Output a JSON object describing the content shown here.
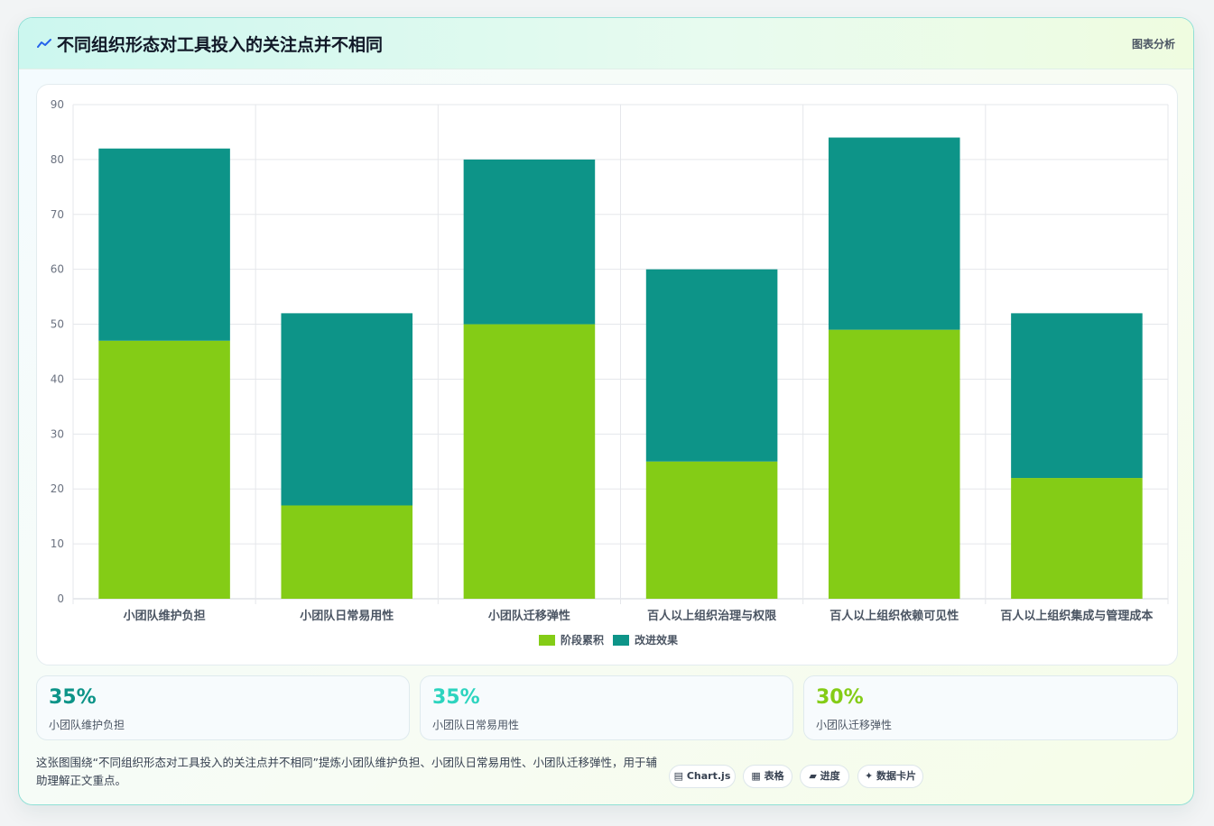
{
  "header": {
    "icon": "line-chart-icon",
    "title": "不同组织形态对工具投入的关注点并不相同",
    "tag": "图表分析"
  },
  "colors": {
    "series1": "#84cc16",
    "series2": "#0d9488",
    "stat1": "#0d9488",
    "stat2": "#2dd4bf",
    "stat3": "#84cc16"
  },
  "chart_data": {
    "type": "bar",
    "stacked": true,
    "categories": [
      "小团队维护负担",
      "小团队日常易用性",
      "小团队迁移弹性",
      "百人以上组织治理与权限",
      "百人以上组织依赖可见性",
      "百人以上组织集成与管理成本"
    ],
    "series": [
      {
        "name": "阶段累积",
        "values": [
          47,
          17,
          50,
          25,
          49,
          22
        ]
      },
      {
        "name": "改进效果",
        "values": [
          35,
          35,
          30,
          35,
          35,
          30
        ]
      }
    ],
    "ylim": [
      0,
      90
    ],
    "yticks": [
      0,
      10,
      20,
      30,
      40,
      50,
      60,
      70,
      80,
      90
    ],
    "grid": true,
    "legend": "bottom"
  },
  "stats": [
    {
      "value": "35%",
      "label": "小团队维护负担"
    },
    {
      "value": "35%",
      "label": "小团队日常易用性"
    },
    {
      "value": "30%",
      "label": "小团队迁移弹性"
    }
  ],
  "description": "这张图围绕“不同组织形态对工具投入的关注点并不相同”提炼小团队维护负担、小团队日常易用性、小团队迁移弹性，用于辅助理解正文重点。",
  "pills": [
    {
      "icon": "chart-icon",
      "label": "Chart.js"
    },
    {
      "icon": "table-icon",
      "label": "表格"
    },
    {
      "icon": "progress-icon",
      "label": "进度"
    },
    {
      "icon": "sparkle-icon",
      "label": "数据卡片"
    }
  ]
}
